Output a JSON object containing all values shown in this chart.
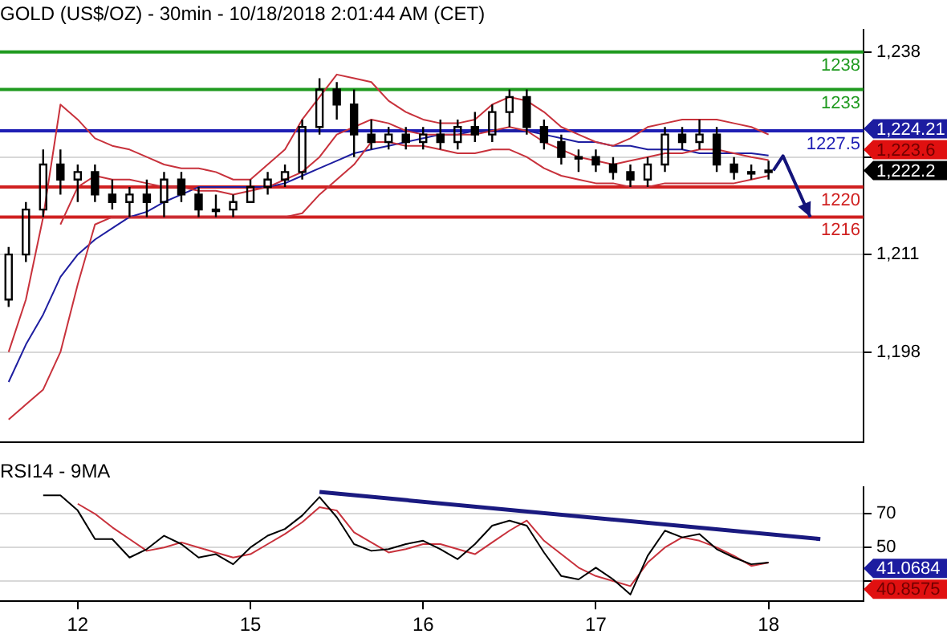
{
  "chart_data": [
    {
      "type": "candlestick",
      "title": "GOLD (US$/OZ) - 30min - 10/18/2018 2:01:44 AM (CET)",
      "color": "#000000",
      "categories": [
        null,
        null,
        null,
        null,
        null,
        null,
        null,
        null,
        null,
        null,
        null,
        null,
        null,
        null,
        null,
        null,
        null,
        null,
        null,
        null,
        null,
        null,
        null,
        null,
        null,
        null,
        null,
        null,
        null,
        null,
        null,
        null,
        null,
        null,
        null,
        null,
        null,
        null,
        null,
        null,
        null,
        null,
        null,
        null,
        null
      ],
      "ohlc": [
        [
          1205,
          1212,
          1204,
          1211
        ],
        [
          1211,
          1218,
          1210,
          1217
        ],
        [
          1217,
          1225,
          1216,
          1223
        ],
        [
          1223,
          1225,
          1219,
          1221
        ],
        [
          1221,
          1223,
          1218,
          1222
        ],
        [
          1222,
          1223,
          1218,
          1219
        ],
        [
          1219,
          1221,
          1217,
          1218
        ],
        [
          1218,
          1220,
          1216,
          1219
        ],
        [
          1219,
          1221,
          1216,
          1218
        ],
        [
          1218,
          1222,
          1216,
          1221
        ],
        [
          1221,
          1222,
          1218,
          1219
        ],
        [
          1219,
          1220,
          1216,
          1217
        ],
        [
          1217,
          1219,
          1216,
          1217
        ],
        [
          1217,
          1219,
          1216,
          1218
        ],
        [
          1218,
          1221,
          1218,
          1220
        ],
        [
          1220,
          1222,
          1219,
          1221
        ],
        [
          1221,
          1223,
          1220,
          1222
        ],
        [
          1222,
          1229,
          1221,
          1228
        ],
        [
          1228,
          1234.5,
          1227,
          1233
        ],
        [
          1233,
          1234,
          1229,
          1231
        ],
        [
          1231,
          1233,
          1224,
          1227
        ],
        [
          1227,
          1229,
          1225,
          1226
        ],
        [
          1226,
          1228,
          1225,
          1227
        ],
        [
          1227,
          1228,
          1225,
          1226
        ],
        [
          1226,
          1228,
          1225,
          1227
        ],
        [
          1227,
          1229,
          1225,
          1226
        ],
        [
          1226,
          1229,
          1225,
          1228
        ],
        [
          1228,
          1230,
          1226,
          1227
        ],
        [
          1227,
          1231,
          1226,
          1230
        ],
        [
          1230,
          1233,
          1228,
          1232
        ],
        [
          1232,
          1233,
          1227,
          1228
        ],
        [
          1228,
          1229,
          1225,
          1226
        ],
        [
          1226,
          1227,
          1223,
          1224
        ],
        [
          1224,
          1225,
          1222,
          1224
        ],
        [
          1224,
          1225,
          1222,
          1223
        ],
        [
          1223,
          1224,
          1221,
          1222
        ],
        [
          1222,
          1223,
          1220,
          1221
        ],
        [
          1221,
          1224,
          1220,
          1223
        ],
        [
          1223,
          1228,
          1222,
          1227
        ],
        [
          1227,
          1228,
          1225,
          1226
        ],
        [
          1226,
          1229,
          1225,
          1227
        ],
        [
          1227,
          1228,
          1222,
          1223
        ],
        [
          1223,
          1224,
          1221,
          1222
        ],
        [
          1222,
          1223,
          1221,
          1222
        ],
        [
          1222,
          1223.5,
          1221,
          1222.2
        ]
      ],
      "series": [
        {
          "type": "line",
          "color": "#c8323c",
          "values": [
            1198,
            1205,
            1216,
            1231,
            1229,
            1226.5,
            1225.5,
            1225,
            1224,
            1223,
            1222.5,
            1222.5,
            1222,
            1221,
            1221,
            1223,
            1225,
            1229,
            1232,
            1235,
            1234.5,
            1234,
            1231.5,
            1230,
            1229,
            1228.5,
            1228.5,
            1229,
            1231,
            1232,
            1231.5,
            1230,
            1228,
            1227,
            1226,
            1225.5,
            1226.5,
            1228,
            1228.5,
            1229,
            1229,
            1229,
            1228.5,
            1228,
            1227
          ]
        },
        {
          "type": "line",
          "color": "#c8323c",
          "values": [
            null,
            null,
            null,
            1215,
            1220,
            1221.5,
            1221,
            1221,
            1220.5,
            1220,
            1220,
            1219.5,
            1219.5,
            1219,
            1219.5,
            1220,
            1221,
            1222,
            1224,
            1227,
            1228,
            1229,
            1228.5,
            1227.5,
            1227,
            1227,
            1227,
            1227,
            1227.5,
            1228,
            1227.5,
            1226,
            1225,
            1224,
            1223.5,
            1223,
            1223.5,
            1224,
            1224.5,
            1224.5,
            1225,
            1225,
            1224.5,
            1224,
            1223.6
          ]
        },
        {
          "type": "line",
          "color": "#c8323c",
          "values": [
            1189,
            1191,
            1193,
            1198,
            1207,
            1215,
            1216,
            1216,
            1216,
            1216,
            1216,
            1216,
            1216,
            1216,
            1216,
            1216,
            1216,
            1216.5,
            1219,
            1221,
            1223,
            1226,
            1226,
            1225.5,
            1225.5,
            1225,
            1224.5,
            1224.5,
            1225,
            1225,
            1224,
            1222.5,
            1221.5,
            1221,
            1220.5,
            1220.5,
            1220,
            1220,
            1220.5,
            1220.5,
            1220.5,
            1220.5,
            1220.5,
            1221,
            1221.5
          ]
        },
        {
          "type": "line",
          "color": "#1e1ea0",
          "values": [
            1194,
            1199,
            1203,
            1208,
            1211,
            1213,
            1214.5,
            1216,
            1216.7,
            1218,
            1219,
            1220,
            1220,
            1220,
            1220,
            1220,
            1220.5,
            1221.5,
            1222.5,
            1223.5,
            1224.5,
            1225,
            1225.5,
            1226,
            1226.5,
            1227,
            1227,
            1227.5,
            1227.5,
            1227.5,
            1227.5,
            1227,
            1226.5,
            1226,
            1226,
            1225.5,
            1225.5,
            1225,
            1225,
            1225,
            1224.5,
            1224.5,
            1224.5,
            1224.5,
            1224.21
          ]
        }
      ],
      "ref_lines": [
        {
          "axis": "y",
          "value": 1238,
          "label": "1238",
          "color": "#1f9a1f"
        },
        {
          "axis": "y",
          "value": 1233,
          "label": "1233",
          "color": "#1f9a1f"
        },
        {
          "axis": "y",
          "value": 1227.5,
          "label": "1227.5",
          "color": "#1e1eb4"
        },
        {
          "axis": "y",
          "value": 1220,
          "label": "1220",
          "color": "#d02020"
        },
        {
          "axis": "y",
          "value": 1216,
          "label": "1216",
          "color": "#d02020"
        }
      ],
      "annotations": [
        "1,224.21",
        "1,223.6",
        "1,222.2"
      ],
      "ylim": [
        1186,
        1241
      ],
      "yticks": [
        {
          "value": 1198,
          "label": "1,198"
        },
        {
          "value": 1211,
          "label": "1,211"
        },
        {
          "value": 1224,
          "label": null
        },
        {
          "value": 1238,
          "label": "1,238"
        }
      ],
      "grid": "y",
      "tick_labels": "y",
      "legend": false
    },
    {
      "type": "line",
      "title": "RSI14 - 9MA",
      "categories": [
        null,
        null,
        null,
        null,
        "12",
        null,
        null,
        null,
        null,
        null,
        null,
        null,
        null,
        null,
        "15",
        null,
        null,
        null,
        null,
        null,
        null,
        null,
        null,
        null,
        "16",
        null,
        null,
        null,
        null,
        null,
        null,
        null,
        null,
        null,
        "17",
        null,
        null,
        null,
        null,
        null,
        null,
        null,
        null,
        null,
        "18",
        null,
        null,
        null
      ],
      "series": [
        {
          "color": "#000000",
          "values": [
            null,
            null,
            81,
            81,
            72,
            55,
            55,
            44,
            49,
            57,
            52,
            44,
            46,
            40,
            50,
            57,
            61,
            69,
            80,
            68,
            52,
            48,
            49,
            52,
            54,
            49,
            43,
            52,
            63,
            66,
            63,
            47,
            33,
            31,
            38,
            31,
            22,
            45,
            60,
            56,
            58,
            49,
            44,
            40,
            41,
            null,
            null,
            null
          ]
        },
        {
          "color": "#c8323c",
          "values": [
            null,
            null,
            null,
            null,
            76,
            70,
            62,
            55,
            48,
            50,
            53,
            50,
            47,
            44,
            46,
            52,
            58,
            65,
            74,
            72,
            59,
            53,
            47,
            49,
            52,
            52,
            49,
            46,
            53,
            60,
            66,
            54,
            46,
            38,
            33,
            30,
            27,
            41,
            50,
            56,
            54,
            50,
            45,
            39,
            41,
            null,
            null,
            null
          ]
        },
        {
          "color": "#1a1a80",
          "values": [
            null,
            null,
            null,
            null,
            null,
            null,
            null,
            null,
            null,
            null,
            null,
            null,
            null,
            null,
            null,
            null,
            null,
            null,
            83,
            null,
            null,
            null,
            null,
            null,
            null,
            null,
            null,
            null,
            null,
            null,
            null,
            null,
            null,
            null,
            null,
            null,
            null,
            null,
            null,
            null,
            null,
            null,
            null,
            null,
            null,
            null,
            null,
            55
          ]
        }
      ],
      "annotations": [
        "41.0684",
        "40.8575"
      ],
      "ylim": [
        18,
        86
      ],
      "yticks": [
        {
          "value": 30,
          "label": null
        },
        50,
        70
      ],
      "grid": "y",
      "legend": false
    }
  ]
}
